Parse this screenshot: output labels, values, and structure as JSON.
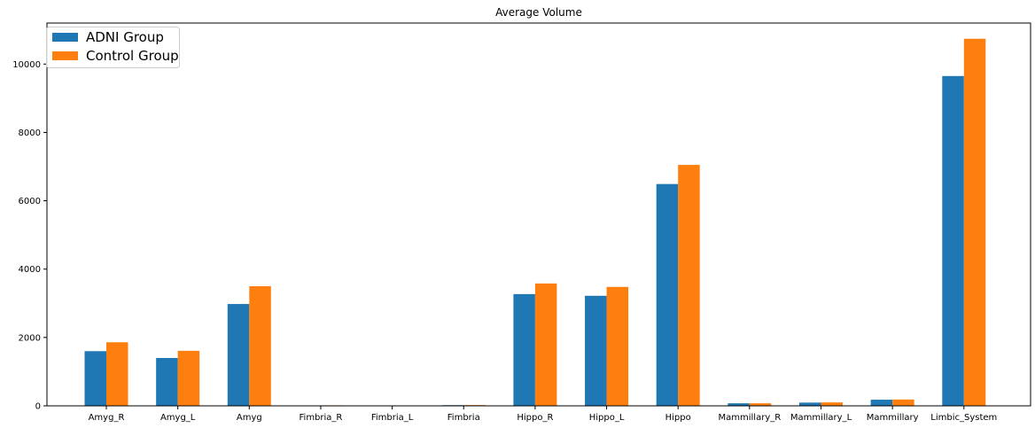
{
  "chart_data": {
    "type": "bar",
    "title": "Average Volume",
    "xlabel": "",
    "ylabel": "",
    "categories": [
      "Amyg_R",
      "Amyg_L",
      "Amyg",
      "Fimbria_R",
      "Fimbria_L",
      "Fimbria",
      "Hippo_R",
      "Hippo_L",
      "Hippo",
      "Mammillary_R",
      "Mammillary_L",
      "Mammillary",
      "Limbic_System"
    ],
    "series": [
      {
        "name": "ADNI Group",
        "color": "#1f77b4",
        "values": [
          1600,
          1400,
          2980,
          5,
          3,
          20,
          3270,
          3220,
          6490,
          75,
          95,
          180,
          9650
        ]
      },
      {
        "name": "Control Group",
        "color": "#ff7f0e",
        "values": [
          1860,
          1610,
          3500,
          15,
          4,
          22,
          3580,
          3480,
          7050,
          75,
          100,
          185,
          10740
        ]
      }
    ],
    "ylim": [
      0,
      11200
    ],
    "yticks": [
      0,
      2000,
      4000,
      6000,
      8000,
      10000
    ],
    "grid": false,
    "legend_position": "top-left"
  }
}
